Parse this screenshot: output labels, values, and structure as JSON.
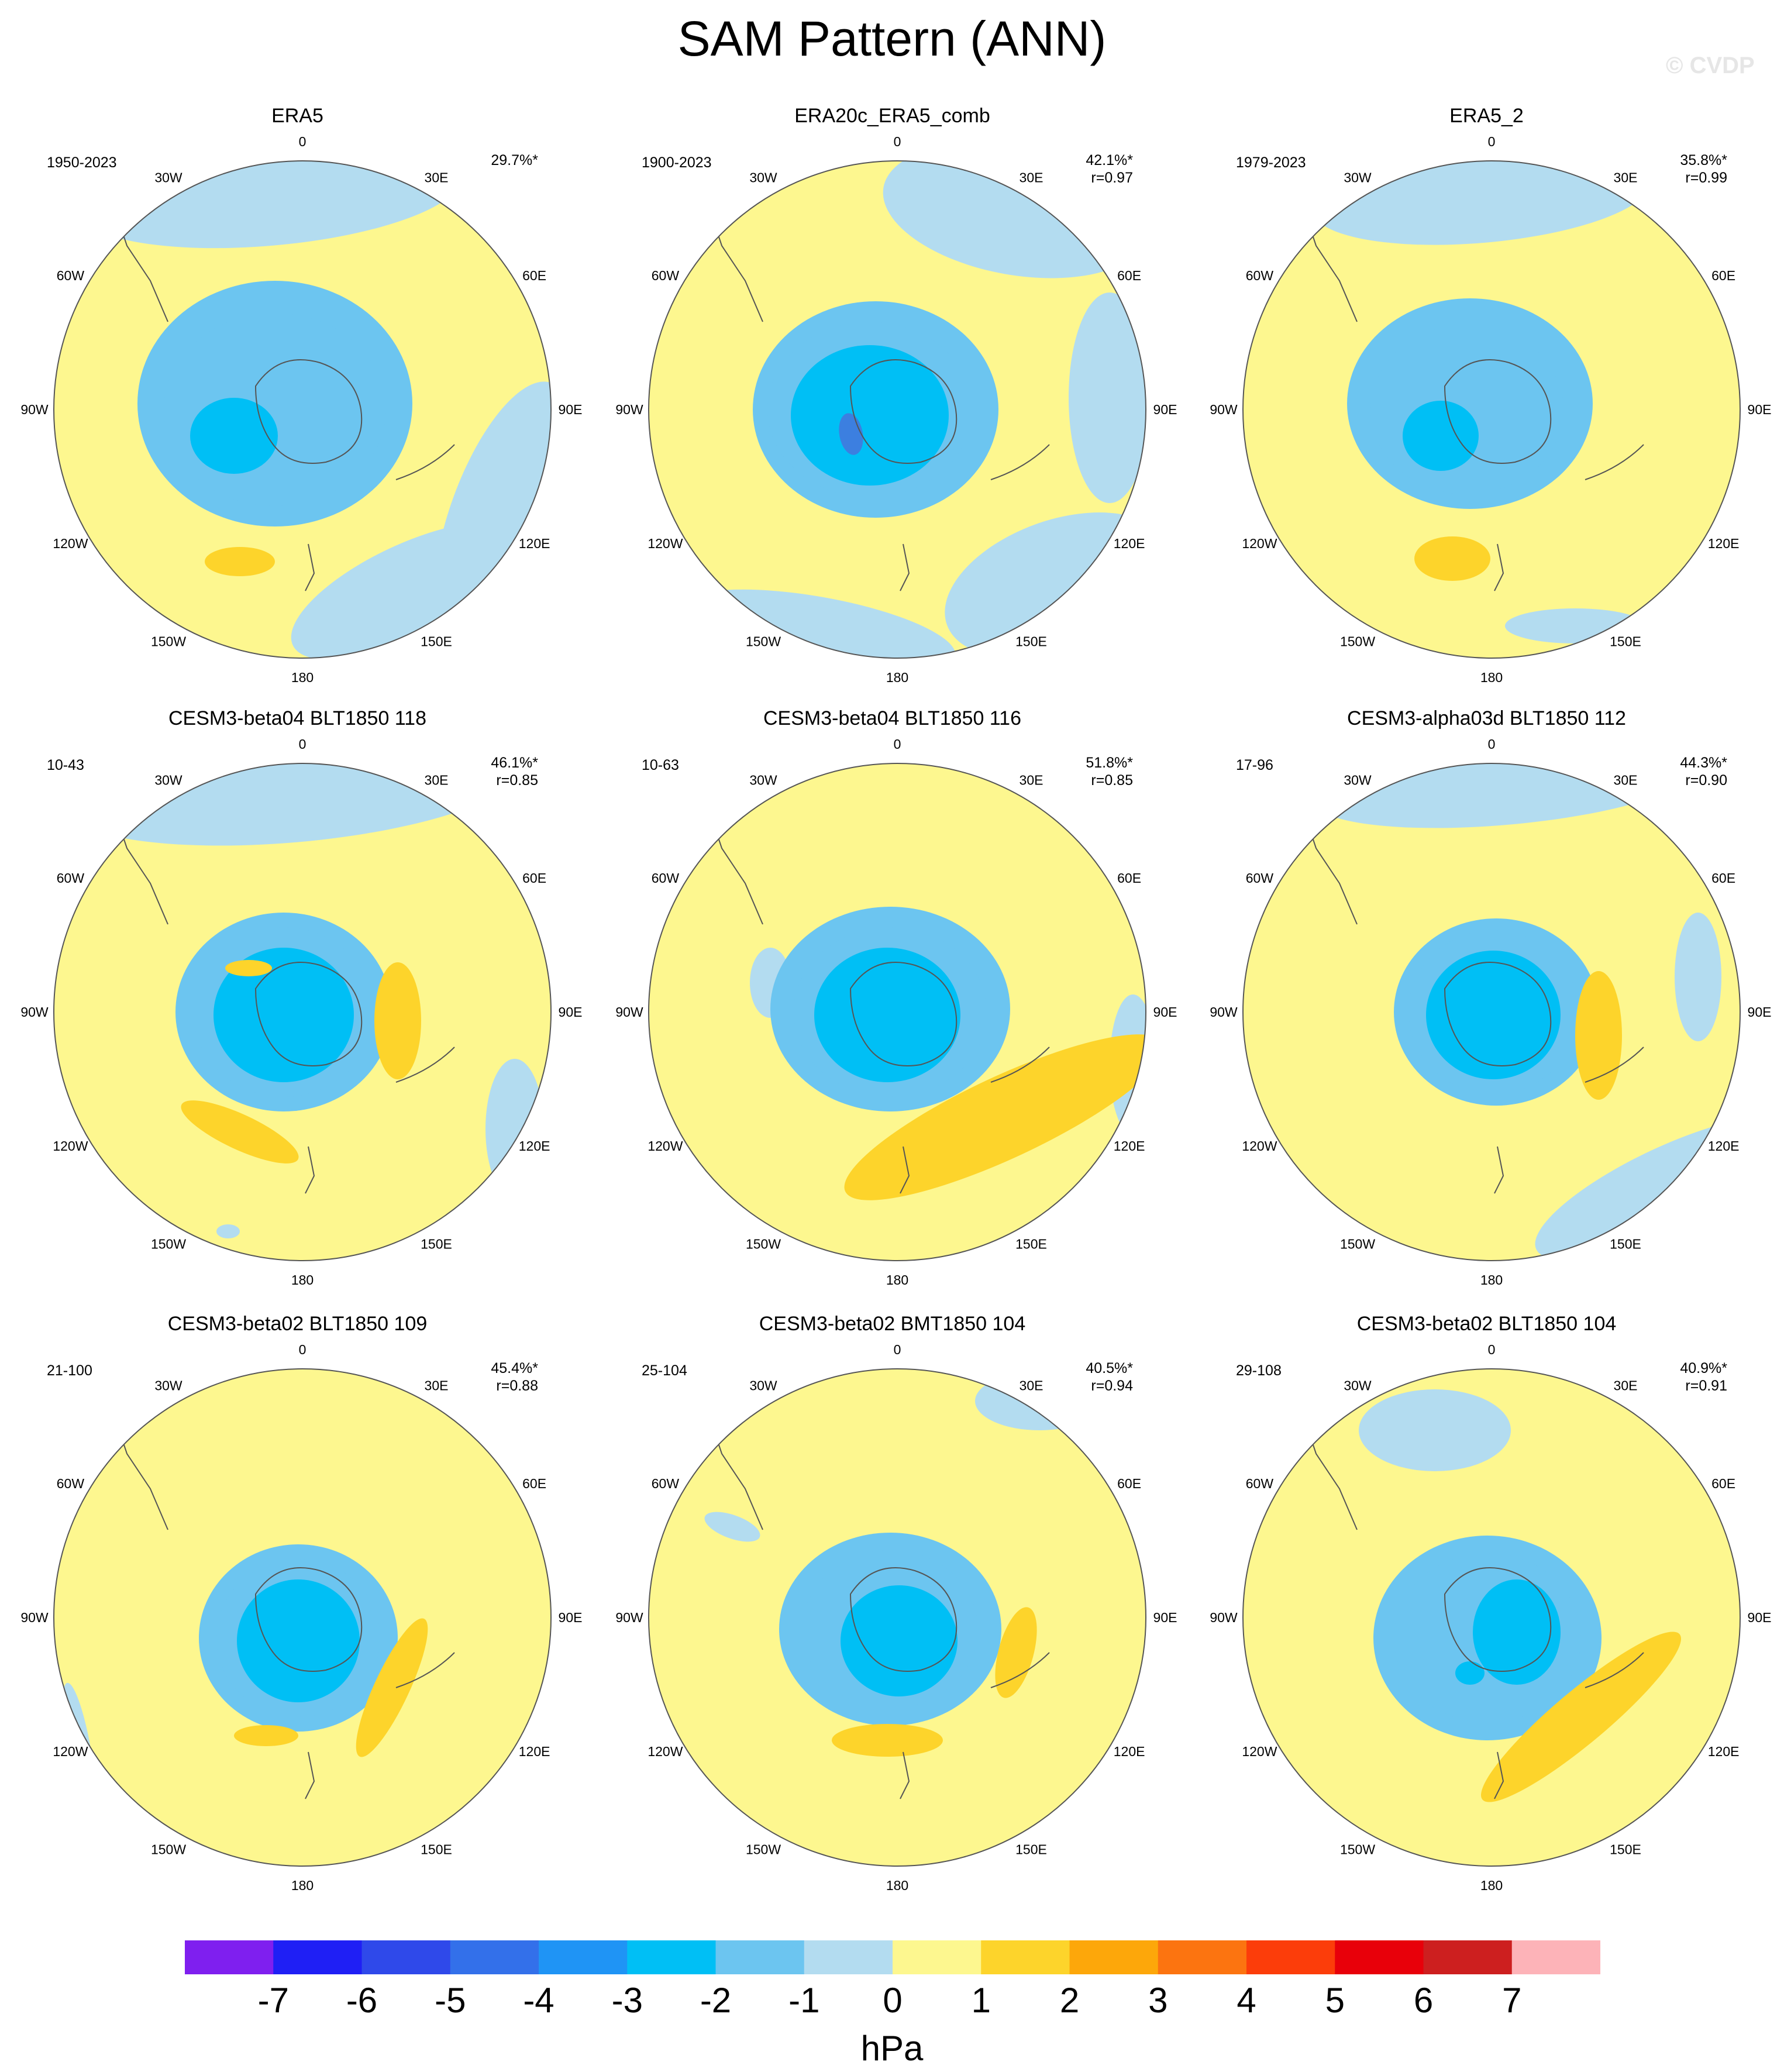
{
  "figure": {
    "title": "SAM Pattern (ANN)",
    "watermark": "© CVDP",
    "longitude_labels": [
      "0",
      "30E",
      "60E",
      "90E",
      "120E",
      "150E",
      "180",
      "150W",
      "120W",
      "90W",
      "60W",
      "30W"
    ]
  },
  "panels": [
    {
      "title": "ERA5",
      "years": "1950-2023",
      "stats": [
        "29.7%*"
      ]
    },
    {
      "title": "ERA20c_ERA5_comb",
      "years": "1900-2023",
      "stats": [
        "42.1%*",
        "r=0.97"
      ]
    },
    {
      "title": "ERA5_2",
      "years": "1979-2023",
      "stats": [
        "35.8%*",
        "r=0.99"
      ]
    },
    {
      "title": "CESM3-beta04 BLT1850 118",
      "years": "10-43",
      "stats": [
        "46.1%*",
        "r=0.85"
      ]
    },
    {
      "title": "CESM3-beta04 BLT1850 116",
      "years": "10-63",
      "stats": [
        "51.8%*",
        "r=0.85"
      ]
    },
    {
      "title": "CESM3-alpha03d BLT1850 112",
      "years": "17-96",
      "stats": [
        "44.3%*",
        "r=0.90"
      ]
    },
    {
      "title": "CESM3-beta02 BLT1850 109",
      "years": "21-100",
      "stats": [
        "45.4%*",
        "r=0.88"
      ]
    },
    {
      "title": "CESM3-beta02 BMT1850 104",
      "years": "25-104",
      "stats": [
        "40.5%*",
        "r=0.94"
      ]
    },
    {
      "title": "CESM3-beta02 BLT1850 104",
      "years": "29-108",
      "stats": [
        "40.9%*",
        "r=0.91"
      ]
    }
  ],
  "colorbar": {
    "units": "hPa",
    "tick_labels": [
      "-7",
      "-6",
      "-5",
      "-4",
      "-3",
      "-2",
      "-1",
      "0",
      "1",
      "2",
      "3",
      "4",
      "5",
      "6",
      "7"
    ],
    "colors": [
      "#7f1fef",
      "#1f1ff5",
      "#2f49ea",
      "#3370ea",
      "#1f94f5",
      "#00bff5",
      "#6cc5f0",
      "#b3dcf0",
      "#fdf78f",
      "#fdd42b",
      "#fda70a",
      "#fc7410",
      "#fc3d0a",
      "#e8000a",
      "#cd1f1f",
      "#fdb3b8"
    ]
  },
  "colors": {
    "ocean_light_blue": "#b3dcf0",
    "positive_light": "#fdf78f",
    "positive_mid": "#fdd42b",
    "negative_1": "#6cc5f0",
    "negative_2": "#6cc5f0",
    "negative_3": "#00bff5",
    "negative_4": "#3c7fe0",
    "coastline": "#555555"
  }
}
